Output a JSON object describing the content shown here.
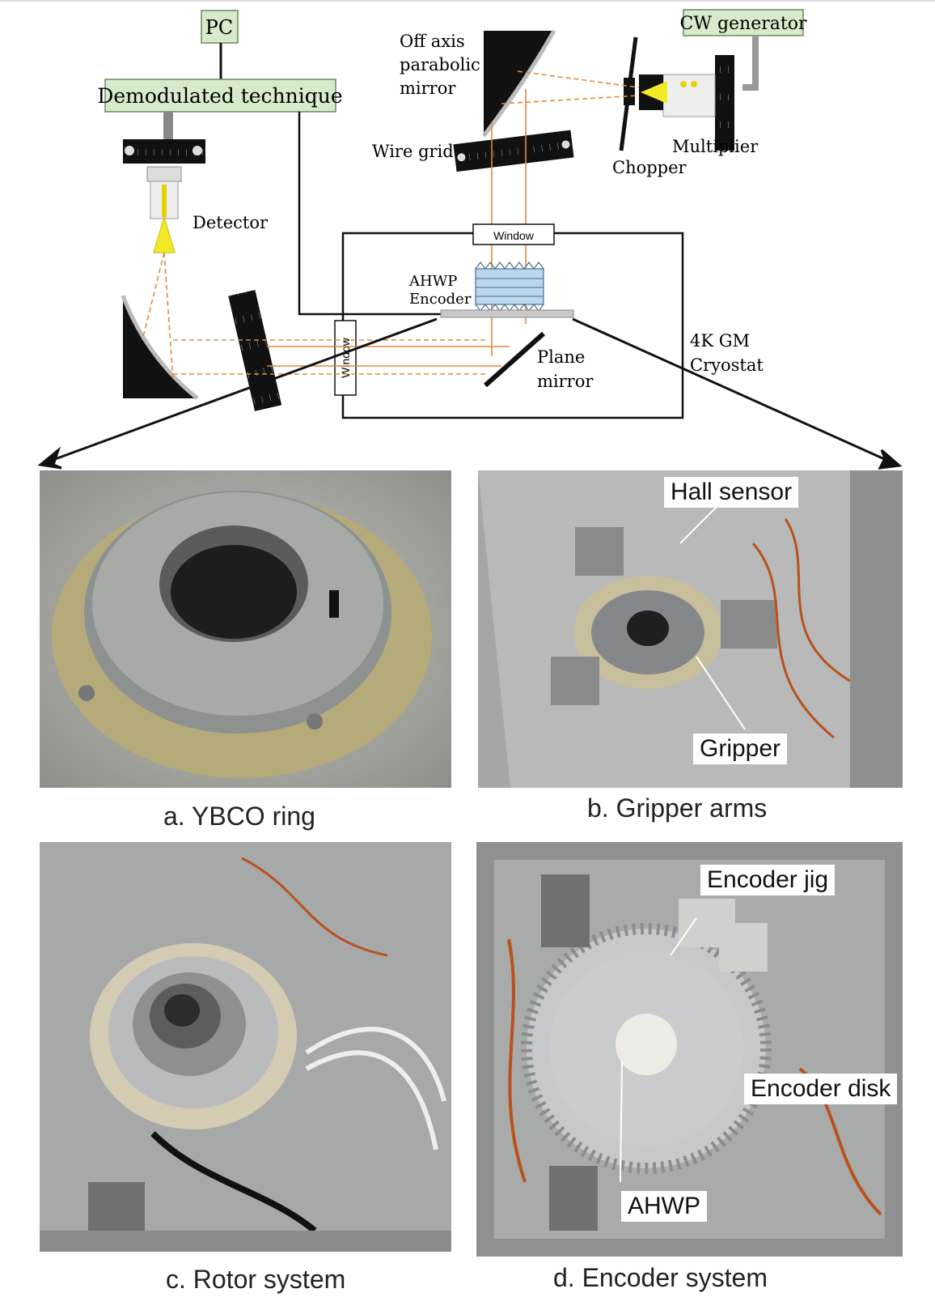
{
  "schematic": {
    "pc": "PC",
    "demodulated": "Demodulated technique",
    "cw_generator": "CW generator",
    "off_axis_mirror": [
      "Off axis",
      "parabolic",
      "mirror"
    ],
    "wire_grid": "Wire grid",
    "multiplier": "Multiplier",
    "chopper": "Chopper",
    "detector": "Detector",
    "window_top": "Window",
    "window_side": "Window",
    "ahwp_encoder": [
      "AHWP",
      "Encoder"
    ],
    "plane_mirror": [
      "Plane",
      "mirror"
    ],
    "cryostat": [
      "4K GM",
      "Cryostat"
    ]
  },
  "photos": {
    "a": {
      "caption": "a. YBCO ring"
    },
    "b": {
      "caption": "b. Gripper arms",
      "callouts": {
        "hall_sensor": "Hall sensor",
        "gripper": "Gripper"
      }
    },
    "c": {
      "caption": "c. Rotor system"
    },
    "d": {
      "caption": "d. Encoder system",
      "callouts": {
        "encoder_jig": "Encoder jig",
        "encoder_disk": "Encoder disk",
        "ahwp": "AHWP"
      }
    }
  },
  "colors": {
    "box_fill": "#d6ebcb",
    "beam": "#e08a3c",
    "metal": "#b8b8b8"
  }
}
